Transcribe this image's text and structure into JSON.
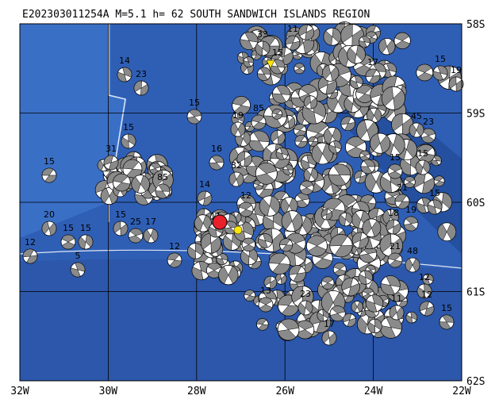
{
  "header": {
    "title": "E202303011254A M=5.1 h= 62 SOUTH SANDWICH ISLANDS REGION"
  },
  "axes": {
    "lon_labels": [
      "32W",
      "30W",
      "28W",
      "26W",
      "24W",
      "22W"
    ],
    "lat_labels": [
      "58S",
      "59S",
      "60S",
      "61S",
      "62S"
    ]
  },
  "events": [
    "15",
    "14",
    "23",
    "15",
    "19",
    "85",
    "15",
    "31",
    "85",
    "20",
    "15",
    "15",
    "12",
    "5",
    "15",
    "25",
    "17",
    "12",
    "11",
    "14",
    "16",
    "32",
    "12",
    "33",
    "11",
    "15",
    "17",
    "15",
    "15",
    "21",
    "15",
    "18",
    "19",
    "48",
    "21",
    "12",
    "12",
    "15",
    "11",
    "13",
    "23",
    "17",
    "15",
    "19",
    "23",
    "45"
  ]
}
